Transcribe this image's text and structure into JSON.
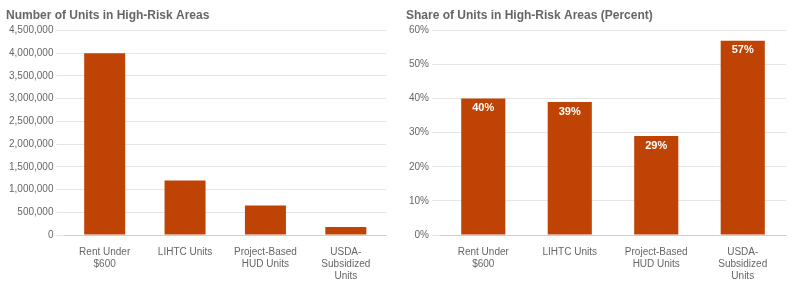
{
  "chart_data": [
    {
      "type": "bar",
      "title": "Number of Units in High-Risk Areas",
      "categories": [
        "Rent Under\n$600",
        "LIHTC Units",
        "Project-Based\nHUD Units",
        "USDA-\nSubsidized\nUnits"
      ],
      "values": [
        4000000,
        1200000,
        650000,
        175000
      ],
      "color": "#bf4304",
      "ylim": [
        0,
        4500000
      ],
      "yticks": [
        0,
        {
          "value": 500000,
          "label": "500,000"
        },
        {
          "value": 1000000,
          "label": "1,000,000"
        },
        {
          "value": 1500000,
          "label": "1,500,000"
        },
        {
          "value": 2000000,
          "label": "2,000,000"
        },
        {
          "value": 2500000,
          "label": "2,500,000"
        },
        {
          "value": 3000000,
          "label": "3,000,000"
        },
        {
          "value": 3500000,
          "label": "3,500,000"
        },
        {
          "value": 4000000,
          "label": "4,000,000"
        },
        {
          "value": 4500000,
          "label": "4,500,000"
        }
      ],
      "grid": true
    },
    {
      "type": "bar",
      "title": "Share of Units in High-Risk Areas (Percent)",
      "categories": [
        "Rent Under\n$600",
        "LIHTC Units",
        "Project-Based\nHUD Units",
        "USDA-\nSubsidized\nUnits"
      ],
      "values": [
        40,
        39,
        29,
        57
      ],
      "value_labels": [
        "40%",
        "39%",
        "29%",
        "57%"
      ],
      "data_labels": true,
      "color": "#bf4304",
      "ylim": [
        0,
        60
      ],
      "yticks": [
        {
          "value": 0,
          "label": "0%"
        },
        {
          "value": 10,
          "label": "10%"
        },
        {
          "value": 20,
          "label": "20%"
        },
        {
          "value": 30,
          "label": "30%"
        },
        {
          "value": 40,
          "label": "40%"
        },
        {
          "value": 50,
          "label": "50%"
        },
        {
          "value": 60,
          "label": "60%"
        }
      ],
      "grid": true
    }
  ]
}
